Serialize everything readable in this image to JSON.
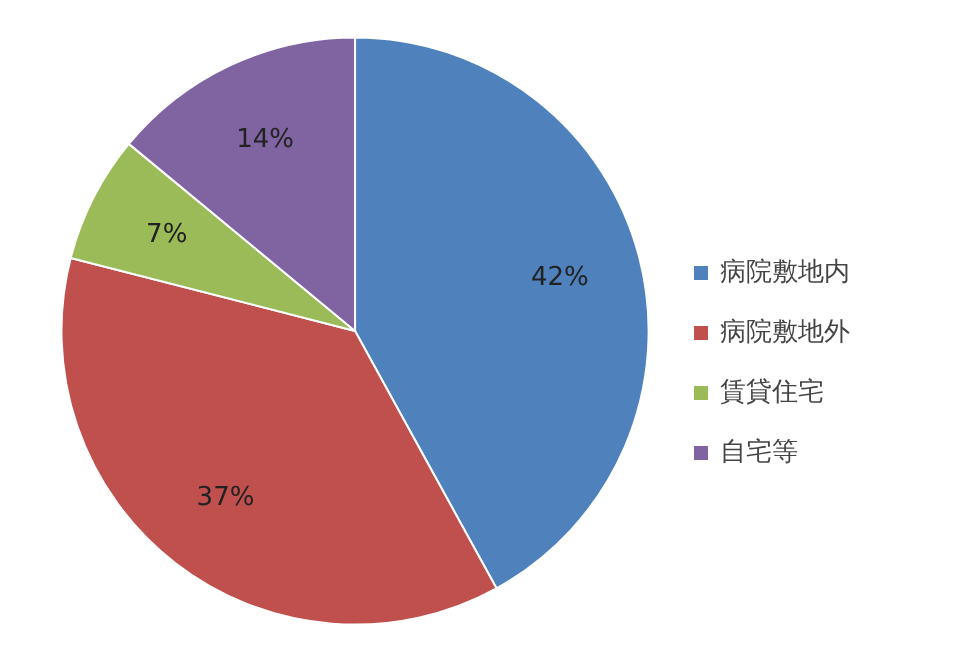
{
  "chart_data": {
    "type": "pie",
    "categories": [
      "病院敷地内",
      "病院敷地外",
      "賃貸住宅",
      "自宅等"
    ],
    "values": [
      42,
      37,
      7,
      14
    ],
    "colors": [
      "#4f81bd",
      "#c0504d",
      "#9bbb59",
      "#8064a2"
    ],
    "value_labels": [
      "42%",
      "37%",
      "7%",
      "14%"
    ],
    "legend": "right"
  }
}
